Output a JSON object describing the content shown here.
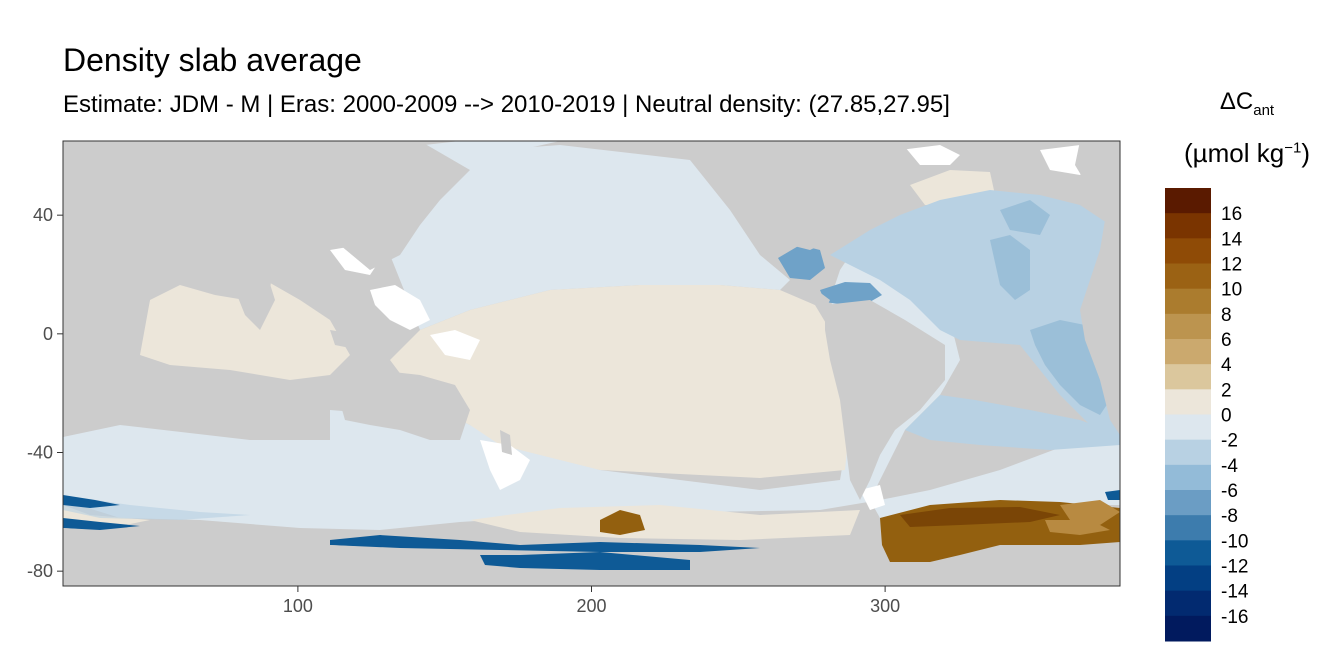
{
  "title": "Density slab average",
  "subtitle": "Estimate: JDM - M | Eras: 2000-2009 --> 2010-2019 | Neutral density: (27.85,27.95]",
  "map": {
    "x_range": [
      20,
      380
    ],
    "y_range": [
      -85,
      65
    ],
    "x_ticks": [
      100,
      200,
      300
    ],
    "y_ticks": [
      40,
      0,
      -40,
      -80
    ],
    "colors": {
      "land": "#cccccc",
      "missing": "#ffffff",
      "pos_0_2": "#ece6da",
      "neg_0_2": "#dde7ee",
      "neg_2_4": "#b8d1e3",
      "neg_4_6": "#9bbfd8",
      "neg_6_8": "#6fa2c8",
      "pos_8_10": "#b88a41",
      "pos_12_14": "#93600f",
      "pos_14_16": "#7a4506"
    }
  },
  "legend": {
    "title_symbol": "ΔC",
    "title_subscript": "ant",
    "unit_prefix": "(µmol kg",
    "unit_sup": "−1",
    "unit_suffix": ")",
    "labels": [
      "16",
      "14",
      "12",
      "10",
      "8",
      "6",
      "4",
      "2",
      "0",
      "-2",
      "-4",
      "-6",
      "-8",
      "-10",
      "-12",
      "-14",
      "-16"
    ],
    "colors": [
      "#5a1a00",
      "#7a3400",
      "#8f4b06",
      "#9b6214",
      "#ab7c2e",
      "#bc944f",
      "#cba96e",
      "#dbc79d",
      "#ece6da",
      "#dde7ee",
      "#b8d1e3",
      "#93bbd8",
      "#6b9dc4",
      "#3d7cad",
      "#0e5a96",
      "#033f83",
      "#022a70",
      "#011a5e"
    ]
  }
}
